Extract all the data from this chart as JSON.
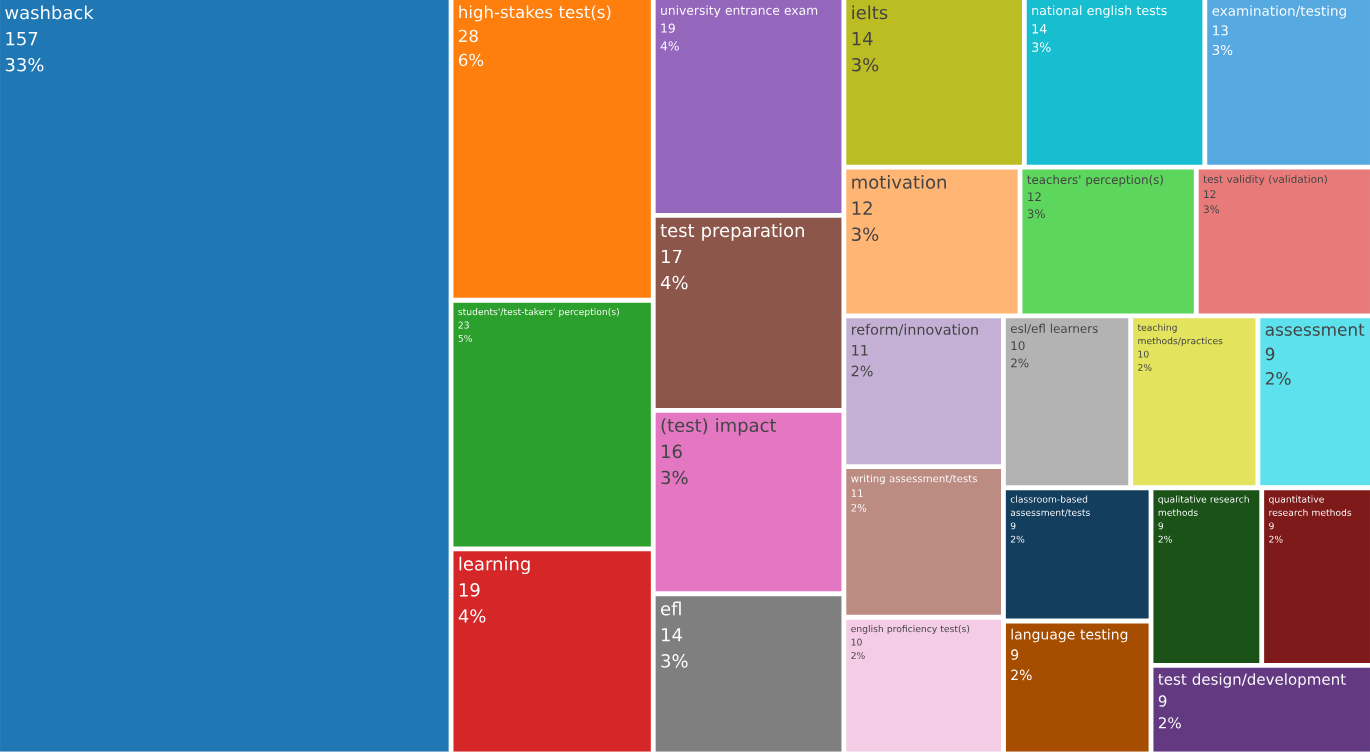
{
  "chart_data": {
    "type": "other",
    "data_labels": true,
    "categories": [
      "washback",
      "high-stakes test(s)",
      "students'/test-takers' perception(s)",
      "learning",
      "university entrance exam",
      "test preparation",
      "(test) impact",
      "efl",
      "ielts",
      "national english tests",
      "examination/testing",
      "motivation",
      "teachers' perception(s)",
      "test validity (validation)",
      "reform/innovation",
      "writing assessment/tests",
      "english proficiency test(s)",
      "esl/efl learners",
      "teaching methods/practices",
      "assessment",
      "classroom-based assessment/tests",
      "language testing",
      "qualitative research methods",
      "quantitative research methods",
      "test design/development"
    ],
    "values": [
      157,
      28,
      23,
      19,
      19,
      17,
      16,
      14,
      14,
      14,
      13,
      12,
      12,
      12,
      11,
      11,
      10,
      10,
      10,
      9,
      9,
      9,
      9,
      9,
      9
    ],
    "annotations": [
      {
        "text": "33%",
        "x": "washback"
      },
      {
        "text": "6%",
        "x": "high-stakes test(s)"
      },
      {
        "text": "5%",
        "x": "students'/test-takers' perception(s)"
      },
      {
        "text": "4%",
        "x": "learning"
      },
      {
        "text": "4%",
        "x": "university entrance exam"
      },
      {
        "text": "4%",
        "x": "test preparation"
      },
      {
        "text": "3%",
        "x": "(test) impact"
      },
      {
        "text": "3%",
        "x": "efl"
      },
      {
        "text": "3%",
        "x": "ielts"
      },
      {
        "text": "3%",
        "x": "national english tests"
      },
      {
        "text": "3%",
        "x": "examination/testing"
      },
      {
        "text": "3%",
        "x": "motivation"
      },
      {
        "text": "3%",
        "x": "teachers' perception(s)"
      },
      {
        "text": "3%",
        "x": "test validity (validation)"
      },
      {
        "text": "2%",
        "x": "reform/innovation"
      },
      {
        "text": "2%",
        "x": "writing assessment/tests"
      },
      {
        "text": "2%",
        "x": "english proficiency test(s)"
      },
      {
        "text": "2%",
        "x": "esl/efl learners"
      },
      {
        "text": "2%",
        "x": "teaching methods/practices"
      },
      {
        "text": "2%",
        "x": "assessment"
      },
      {
        "text": "2%",
        "x": "classroom-based assessment/tests"
      },
      {
        "text": "2%",
        "x": "language testing"
      },
      {
        "text": "2%",
        "x": "qualitative research methods"
      },
      {
        "text": "2%",
        "x": "quantitative research methods"
      },
      {
        "text": "2%",
        "x": "test design/development"
      }
    ],
    "colors": [
      "#1f77b4",
      "#ff7f0e",
      "#2ca02c",
      "#d62728",
      "#9467bd",
      "#8c564b",
      "#e377c2",
      "#7f7f7f",
      "#bcbd22",
      "#17becf",
      "#57a9e2",
      "#ffb574",
      "#5cd65c",
      "#e87a7a",
      "#c5b0d5",
      "#bc8b81",
      "#f4cce5",
      "#b3b3b3",
      "#e3e35e",
      "#5ce1ed",
      "#133e5e",
      "#a64d00",
      "#1a5218",
      "#7f1a1a",
      "#633a82"
    ]
  }
}
